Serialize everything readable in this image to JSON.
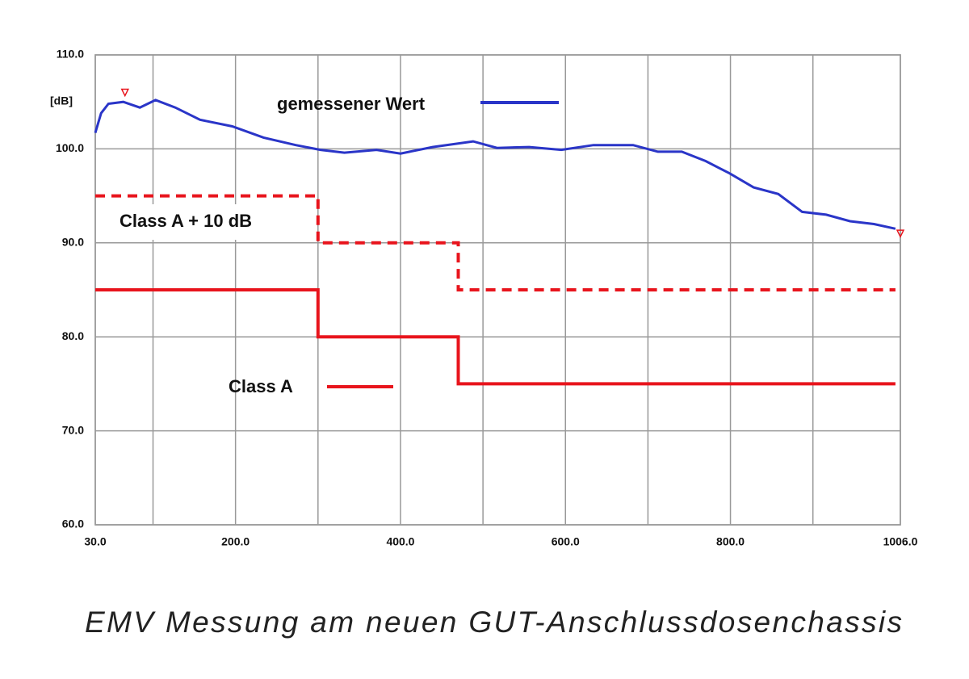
{
  "chart_data": {
    "type": "line",
    "title": "EMV Messung am neuen GUT-Anschlussdosenchassis",
    "ylabel": "[dB]",
    "xlim": [
      30,
      1006
    ],
    "ylim": [
      60,
      110
    ],
    "xticks": [
      {
        "value": 30,
        "label": "30.0"
      },
      {
        "value": 200,
        "label": "200.0"
      },
      {
        "value": 400,
        "label": "400.0"
      },
      {
        "value": 600,
        "label": "600.0"
      },
      {
        "value": 800,
        "label": "800.0"
      },
      {
        "value": 1006,
        "label": "1006.0"
      }
    ],
    "x_minor_ticks": [
      100,
      300,
      500,
      700,
      900
    ],
    "yticks": [
      {
        "value": 60,
        "label": "60.0"
      },
      {
        "value": 70,
        "label": "70.0"
      },
      {
        "value": 80,
        "label": "80.0"
      },
      {
        "value": 90,
        "label": "90.0"
      },
      {
        "value": 100,
        "label": "100.0"
      },
      {
        "value": 110,
        "label": "110.0"
      }
    ],
    "grid": true,
    "series": [
      {
        "name": "gemessener Wert",
        "color": "#2a35c8",
        "dash": false,
        "x": [
          30,
          37,
          46,
          64,
          84,
          103,
          127,
          157,
          196,
          234,
          273,
          303,
          332,
          371,
          400,
          439,
          488,
          517,
          556,
          595,
          634,
          682,
          712,
          741,
          770,
          799,
          828,
          858,
          887,
          916,
          945,
          974,
          1000
        ],
        "values": [
          101.7,
          103.8,
          104.8,
          105,
          104.4,
          105.2,
          104.4,
          103.1,
          102.4,
          101.2,
          100.4,
          99.9,
          99.6,
          99.9,
          99.5,
          100.2,
          100.8,
          100.1,
          100.2,
          99.9,
          100.4,
          100.4,
          99.7,
          99.7,
          98.7,
          97.4,
          95.9,
          95.2,
          93.3,
          93,
          92.3,
          92,
          91.5
        ]
      },
      {
        "name": "Class A + 10 dB",
        "color": "#e8141c",
        "dash": true,
        "x": [
          30,
          300,
          300,
          470,
          470,
          1000
        ],
        "values": [
          95,
          95,
          90,
          90,
          85,
          85
        ]
      },
      {
        "name": "Class A",
        "color": "#e8141c",
        "dash": false,
        "x": [
          30,
          300,
          300,
          470,
          470,
          1000
        ],
        "values": [
          85,
          85,
          80,
          80,
          75,
          75
        ]
      }
    ],
    "markers": [
      {
        "x": 66,
        "y": 106
      },
      {
        "x": 1006,
        "y": 91
      }
    ]
  }
}
